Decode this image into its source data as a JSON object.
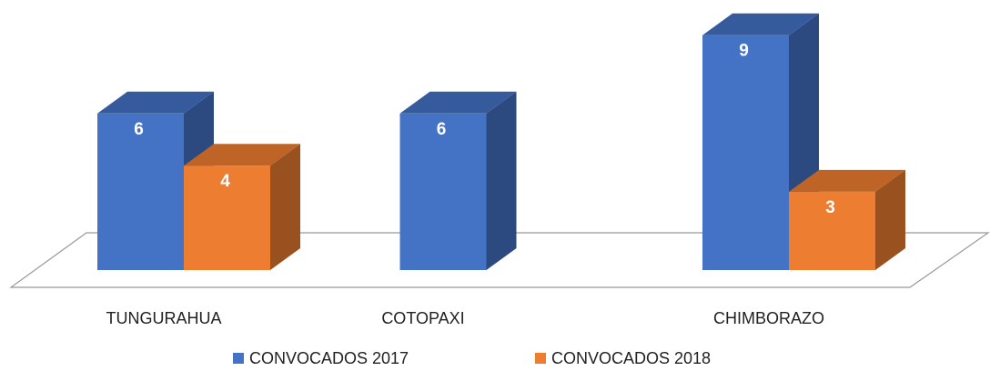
{
  "chart_data": {
    "type": "bar3d",
    "categories": [
      "TUNGURAHUA",
      "COTOPAXI",
      "CHIMBORAZO"
    ],
    "series": [
      {
        "name": "CONVOCADOS 2017",
        "color": "#4472c4",
        "values": [
          6,
          6,
          9
        ]
      },
      {
        "name": "CONVOCADOS 2018",
        "color": "#ed7d31",
        "values": [
          4,
          null,
          3
        ]
      }
    ],
    "legend": "bottom"
  }
}
